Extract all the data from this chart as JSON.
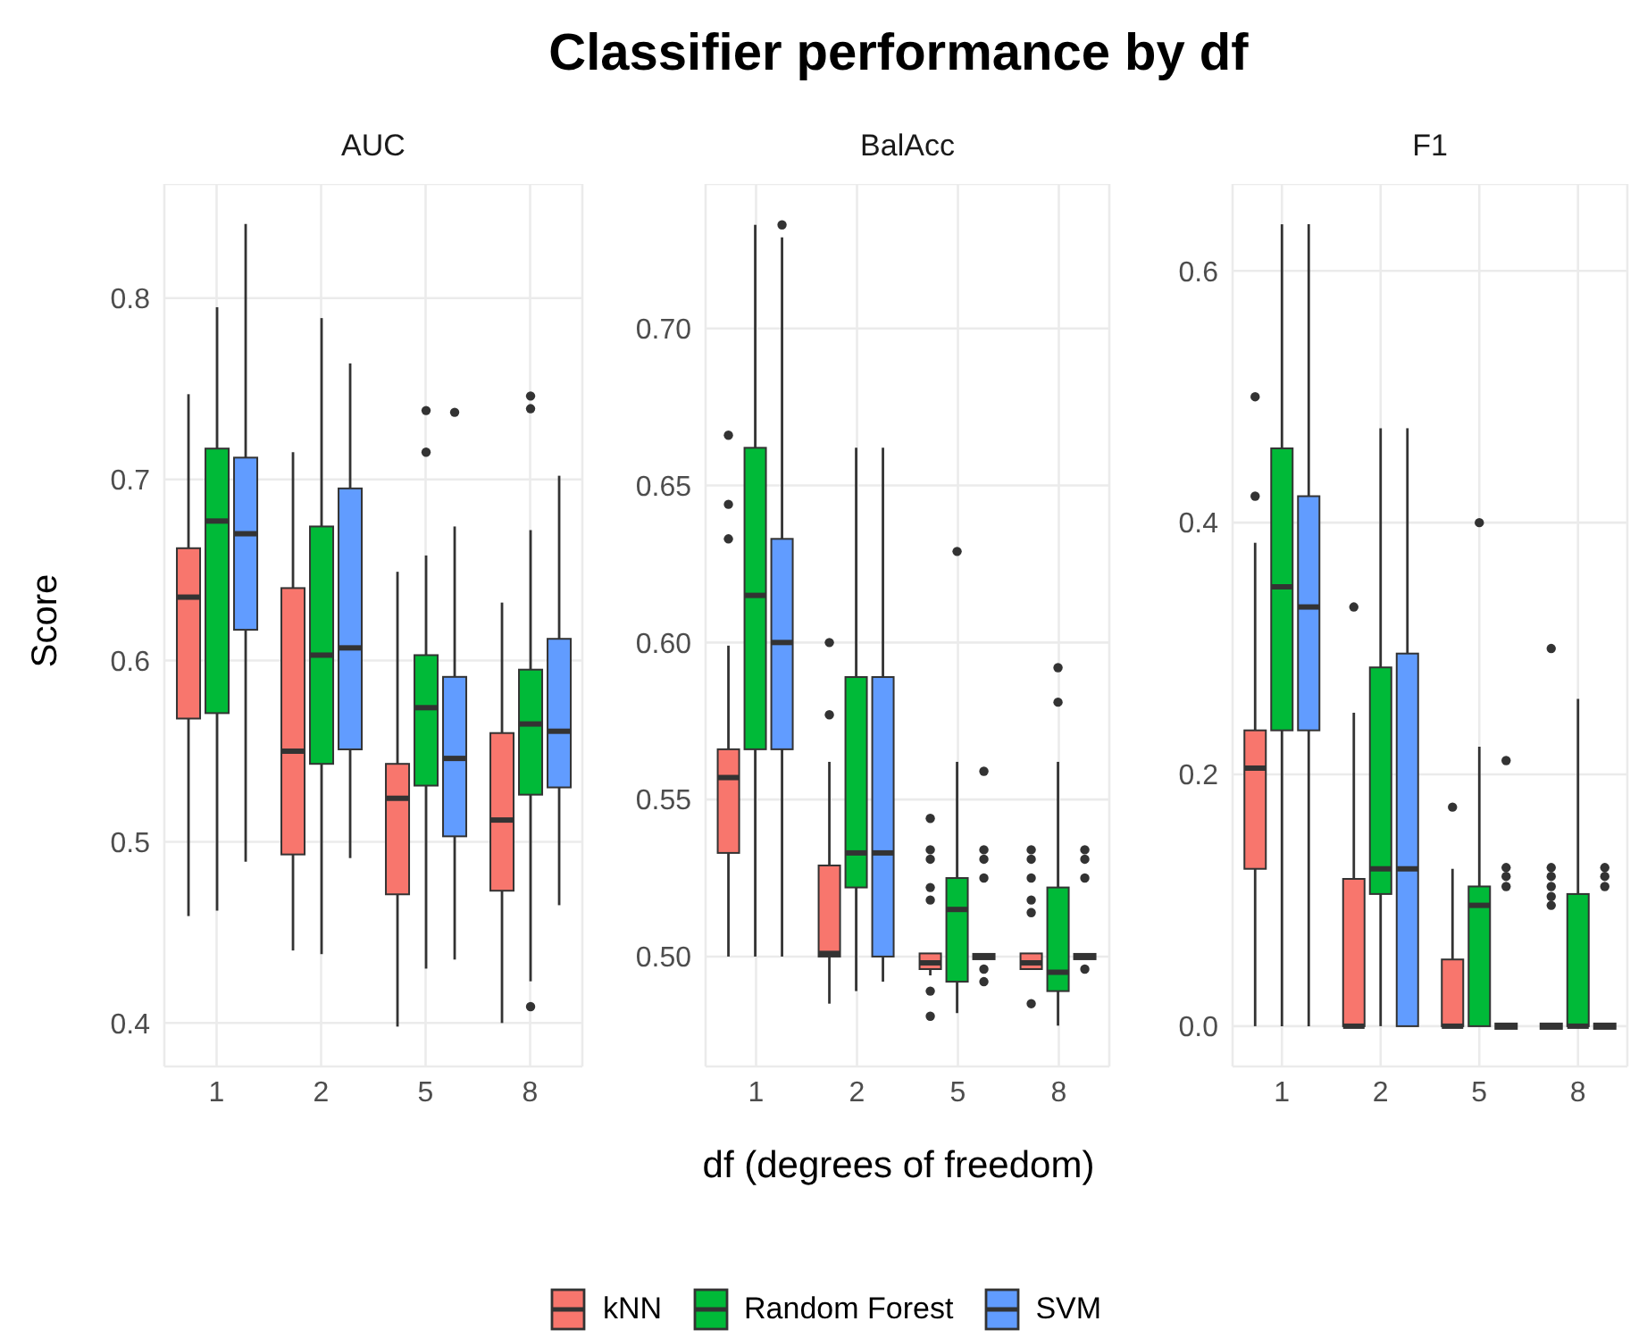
{
  "chart_data": [
    {
      "type": "box",
      "subtitle": "AUC",
      "ylabel": "Score",
      "legend": "bottom",
      "categories": [
        "1",
        "2",
        "5",
        "8"
      ],
      "ylim": [
        0.376,
        0.863
      ],
      "yticks": [
        0.4,
        0.5,
        0.6,
        0.7,
        0.8
      ],
      "grid": true,
      "series": [
        {
          "name": "kNN",
          "color": "#f8766d",
          "boxes": [
            {
              "low": 0.459,
              "q1": 0.568,
              "median": 0.635,
              "q3": 0.662,
              "high": 0.747
            },
            {
              "low": 0.44,
              "q1": 0.493,
              "median": 0.55,
              "q3": 0.64,
              "high": 0.715
            },
            {
              "low": 0.398,
              "q1": 0.471,
              "median": 0.524,
              "q3": 0.543,
              "high": 0.649
            },
            {
              "low": 0.4,
              "q1": 0.473,
              "median": 0.512,
              "q3": 0.56,
              "high": 0.632
            }
          ]
        },
        {
          "name": "Random Forest",
          "color": "#00ba38",
          "boxes": [
            {
              "low": 0.462,
              "q1": 0.571,
              "median": 0.677,
              "q3": 0.717,
              "high": 0.795
            },
            {
              "low": 0.438,
              "q1": 0.543,
              "median": 0.603,
              "q3": 0.674,
              "high": 0.789
            },
            {
              "low": 0.43,
              "q1": 0.531,
              "median": 0.574,
              "q3": 0.603,
              "high": 0.658,
              "outliers": [
                0.738,
                0.715
              ]
            },
            {
              "low": 0.423,
              "q1": 0.526,
              "median": 0.565,
              "q3": 0.595,
              "high": 0.672,
              "outliers": [
                0.746,
                0.739,
                0.409
              ]
            }
          ]
        },
        {
          "name": "SVM",
          "color": "#619cff",
          "boxes": [
            {
              "low": 0.489,
              "q1": 0.617,
              "median": 0.67,
              "q3": 0.712,
              "high": 0.841
            },
            {
              "low": 0.491,
              "q1": 0.551,
              "median": 0.607,
              "q3": 0.695,
              "high": 0.764
            },
            {
              "low": 0.435,
              "q1": 0.503,
              "median": 0.546,
              "q3": 0.591,
              "high": 0.674,
              "outliers": [
                0.737
              ]
            },
            {
              "low": 0.465,
              "q1": 0.53,
              "median": 0.561,
              "q3": 0.612,
              "high": 0.702
            }
          ]
        }
      ]
    },
    {
      "type": "box",
      "title": "Classifier performance by df",
      "subtitle": "BalAcc",
      "xlabel": "df (degrees of freedom)",
      "categories": [
        "1",
        "2",
        "5",
        "8"
      ],
      "ylim": [
        0.465,
        0.746
      ],
      "yticks": [
        {
          "value": 0.5,
          "label": "0.50"
        },
        0.55,
        {
          "value": 0.6,
          "label": "0.60"
        },
        0.65,
        {
          "value": 0.7,
          "label": "0.70"
        }
      ],
      "grid": true,
      "series": [
        {
          "color": "#f8766d",
          "boxes": [
            {
              "low": 0.5,
              "q1": 0.533,
              "median": 0.557,
              "q3": 0.566,
              "high": 0.599,
              "outliers": [
                0.666,
                0.644,
                0.633
              ]
            },
            {
              "low": 0.485,
              "q1": 0.5,
              "median": 0.501,
              "q3": 0.529,
              "high": 0.562,
              "outliers": [
                0.6,
                0.577
              ]
            },
            {
              "low": 0.494,
              "q1": 0.496,
              "median": 0.498,
              "q3": 0.501,
              "high": 0.501,
              "outliers": [
                0.544,
                0.534,
                0.531,
                0.522,
                0.518,
                0.489,
                0.481
              ]
            },
            {
              "low": 0.496,
              "q1": 0.496,
              "median": 0.498,
              "q3": 0.501,
              "high": 0.501,
              "outliers": [
                0.534,
                0.531,
                0.525,
                0.518,
                0.514,
                0.485
              ]
            }
          ]
        },
        {
          "color": "#00ba38",
          "boxes": [
            {
              "low": 0.5,
              "q1": 0.566,
              "median": 0.615,
              "q3": 0.662,
              "high": 0.733
            },
            {
              "low": 0.489,
              "q1": 0.522,
              "median": 0.533,
              "q3": 0.589,
              "high": 0.662
            },
            {
              "low": 0.482,
              "q1": 0.492,
              "median": 0.515,
              "q3": 0.525,
              "high": 0.562,
              "outliers": [
                0.629
              ]
            },
            {
              "low": 0.478,
              "q1": 0.489,
              "median": 0.495,
              "q3": 0.522,
              "high": 0.562,
              "outliers": [
                0.592,
                0.581
              ]
            }
          ]
        },
        {
          "color": "#619cff",
          "boxes": [
            {
              "low": 0.5,
              "q1": 0.566,
              "median": 0.6,
              "q3": 0.633,
              "high": 0.729,
              "outliers": [
                0.733
              ]
            },
            {
              "low": 0.492,
              "q1": 0.5,
              "median": 0.533,
              "q3": 0.589,
              "high": 0.662
            },
            {
              "low": 0.5,
              "q1": 0.5,
              "median": 0.5,
              "q3": 0.5,
              "high": 0.5,
              "outliers": [
                0.559,
                0.534,
                0.531,
                0.525,
                0.496,
                0.492
              ]
            },
            {
              "low": 0.5,
              "q1": 0.5,
              "median": 0.5,
              "q3": 0.5,
              "high": 0.5,
              "outliers": [
                0.534,
                0.531,
                0.525,
                0.496
              ]
            }
          ]
        }
      ]
    },
    {
      "type": "box",
      "subtitle": "F1",
      "categories": [
        "1",
        "2",
        "5",
        "8"
      ],
      "ylim": [
        -0.032,
        0.669
      ],
      "yticks": [
        {
          "value": 0,
          "label": "0.0"
        },
        0.2,
        0.4,
        0.6
      ],
      "grid": true,
      "series": [
        {
          "color": "#f8766d",
          "boxes": [
            {
              "low": 0,
              "q1": 0.125,
              "median": 0.205,
              "q3": 0.235,
              "high": 0.384,
              "outliers": [
                0.5,
                0.421
              ]
            },
            {
              "low": 0,
              "q1": 0,
              "median": 0,
              "q3": 0.117,
              "high": 0.249,
              "outliers": [
                0.333
              ]
            },
            {
              "low": 0,
              "q1": 0,
              "median": 0,
              "q3": 0.053,
              "high": 0.125,
              "outliers": [
                0.174
              ]
            },
            {
              "low": 0,
              "q1": 0,
              "median": 0,
              "q3": 0,
              "high": 0,
              "outliers": [
                0.3,
                0.126,
                0.119,
                0.111,
                0.103,
                0.096
              ]
            }
          ]
        },
        {
          "color": "#00ba38",
          "boxes": [
            {
              "low": 0,
              "q1": 0.235,
              "median": 0.349,
              "q3": 0.459,
              "high": 0.637
            },
            {
              "low": 0,
              "q1": 0.105,
              "median": 0.125,
              "q3": 0.285,
              "high": 0.475
            },
            {
              "low": 0,
              "q1": 0,
              "median": 0.096,
              "q3": 0.111,
              "high": 0.222,
              "outliers": [
                0.4
              ]
            },
            {
              "low": 0,
              "q1": 0,
              "median": 0,
              "q3": 0.105,
              "high": 0.26
            }
          ]
        },
        {
          "color": "#619cff",
          "boxes": [
            {
              "low": 0,
              "q1": 0.235,
              "median": 0.333,
              "q3": 0.421,
              "high": 0.637
            },
            {
              "low": 0,
              "q1": 0,
              "median": 0.125,
              "q3": 0.296,
              "high": 0.475
            },
            {
              "low": 0,
              "q1": 0,
              "median": 0,
              "q3": 0,
              "high": 0,
              "outliers": [
                0.211,
                0.126,
                0.119,
                0.111
              ]
            },
            {
              "low": 0,
              "q1": 0,
              "median": 0,
              "q3": 0,
              "high": 0,
              "outliers": [
                0.126,
                0.119,
                0.111
              ]
            }
          ]
        }
      ]
    }
  ]
}
